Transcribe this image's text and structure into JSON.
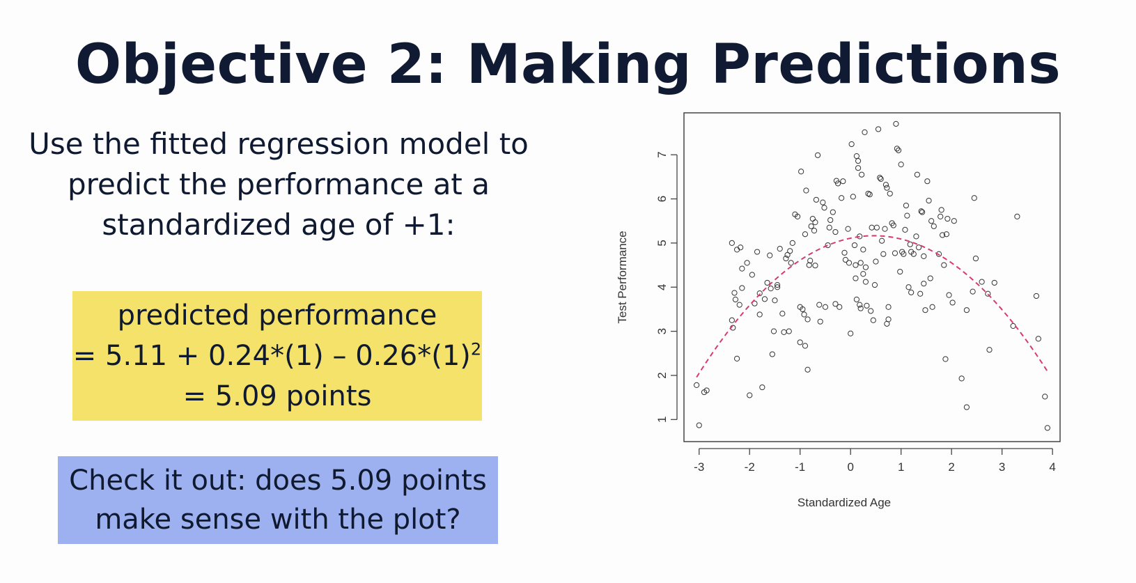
{
  "slide": {
    "title": "Objective 2: Making Predictions",
    "intro_lines": [
      "Use the fitted regression model to",
      "predict the performance at a",
      "standardized age of +1:"
    ],
    "formula": {
      "line1": "predicted performance",
      "line2_main": "= 5.11 + 0.24*(1) – 0.26*(1)",
      "line2_sup": "2",
      "line3": "= 5.09 points"
    },
    "check_lines": [
      "Check it out: does 5.09 points",
      "make sense with the plot?"
    ],
    "colors": {
      "formula_box": "#f5e26a",
      "check_box": "#9db0ef",
      "fit_line": "#d43c6e",
      "title_text": "#101b33"
    }
  },
  "chart_data": {
    "type": "scatter",
    "xlabel": "Standardized Age",
    "ylabel": "Test Performance",
    "xlim": [
      -3.3,
      4.15
    ],
    "ylim": [
      0.5,
      7.95
    ],
    "xticks": [
      -3,
      -2,
      -1,
      0,
      1,
      2,
      3,
      4
    ],
    "yticks": [
      1,
      2,
      3,
      4,
      5,
      6,
      7
    ],
    "grid": false,
    "fit": {
      "intercept": 5.11,
      "b1": 0.24,
      "b2": -0.26,
      "style": "dashed",
      "x_range": [
        -3.05,
        3.9
      ]
    },
    "points": [
      [
        -3.05,
        1.78
      ],
      [
        -3.0,
        0.87
      ],
      [
        -2.9,
        1.62
      ],
      [
        -2.85,
        1.66
      ],
      [
        -2.35,
        5.0
      ],
      [
        -2.25,
        4.85
      ],
      [
        -2.18,
        4.9
      ],
      [
        -2.15,
        4.42
      ],
      [
        -2.3,
        3.87
      ],
      [
        -2.28,
        3.72
      ],
      [
        -2.2,
        3.6
      ],
      [
        -2.15,
        3.98
      ],
      [
        -2.35,
        3.25
      ],
      [
        -2.33,
        3.08
      ],
      [
        -2.25,
        2.38
      ],
      [
        -2.05,
        4.55
      ],
      [
        -2.0,
        1.55
      ],
      [
        -1.95,
        4.28
      ],
      [
        -1.9,
        3.63
      ],
      [
        -1.85,
        4.8
      ],
      [
        -1.8,
        3.86
      ],
      [
        -1.8,
        3.38
      ],
      [
        -1.75,
        1.73
      ],
      [
        -1.7,
        3.73
      ],
      [
        -1.65,
        4.1
      ],
      [
        -1.6,
        4.72
      ],
      [
        -1.58,
        3.97
      ],
      [
        -1.55,
        2.48
      ],
      [
        -1.52,
        3.0
      ],
      [
        -1.5,
        3.7
      ],
      [
        -1.45,
        4.05
      ],
      [
        -1.45,
        4.0
      ],
      [
        -1.4,
        4.87
      ],
      [
        -1.35,
        3.4
      ],
      [
        -1.32,
        2.98
      ],
      [
        -1.28,
        4.65
      ],
      [
        -1.25,
        4.73
      ],
      [
        -1.22,
        3.0
      ],
      [
        -1.2,
        4.82
      ],
      [
        -1.18,
        4.55
      ],
      [
        -1.15,
        5.0
      ],
      [
        -1.1,
        5.65
      ],
      [
        -1.05,
        5.6
      ],
      [
        -1.0,
        3.55
      ],
      [
        -1.0,
        2.75
      ],
      [
        -0.98,
        6.62
      ],
      [
        -0.95,
        3.5
      ],
      [
        -0.92,
        3.38
      ],
      [
        -0.9,
        5.2
      ],
      [
        -0.9,
        2.67
      ],
      [
        -0.88,
        6.19
      ],
      [
        -0.85,
        3.27
      ],
      [
        -0.85,
        2.13
      ],
      [
        -0.82,
        4.5
      ],
      [
        -0.8,
        4.6
      ],
      [
        -0.78,
        5.38
      ],
      [
        -0.75,
        5.55
      ],
      [
        -0.72,
        5.28
      ],
      [
        -0.7,
        5.47
      ],
      [
        -0.7,
        4.49
      ],
      [
        -0.68,
        5.98
      ],
      [
        -0.65,
        6.99
      ],
      [
        -0.62,
        3.6
      ],
      [
        -0.6,
        3.22
      ],
      [
        -0.55,
        5.92
      ],
      [
        -0.52,
        5.8
      ],
      [
        -0.5,
        3.55
      ],
      [
        -0.45,
        4.95
      ],
      [
        -0.42,
        5.35
      ],
      [
        -0.4,
        5.52
      ],
      [
        -0.35,
        5.7
      ],
      [
        -0.3,
        5.25
      ],
      [
        -0.3,
        3.62
      ],
      [
        -0.28,
        6.41
      ],
      [
        -0.25,
        6.35
      ],
      [
        -0.22,
        3.55
      ],
      [
        -0.18,
        6.02
      ],
      [
        -0.15,
        6.4
      ],
      [
        -0.12,
        4.78
      ],
      [
        -0.1,
        4.62
      ],
      [
        -0.05,
        5.32
      ],
      [
        -0.03,
        4.55
      ],
      [
        0.0,
        2.95
      ],
      [
        0.02,
        7.24
      ],
      [
        0.05,
        6.05
      ],
      [
        0.08,
        4.95
      ],
      [
        0.1,
        4.5
      ],
      [
        0.1,
        4.2
      ],
      [
        0.12,
        6.97
      ],
      [
        0.12,
        3.72
      ],
      [
        0.15,
        6.86
      ],
      [
        0.15,
        6.7
      ],
      [
        0.18,
        5.15
      ],
      [
        0.18,
        3.6
      ],
      [
        0.2,
        4.55
      ],
      [
        0.2,
        3.52
      ],
      [
        0.22,
        6.55
      ],
      [
        0.25,
        4.3
      ],
      [
        0.25,
        4.85
      ],
      [
        0.28,
        7.51
      ],
      [
        0.3,
        4.45
      ],
      [
        0.3,
        4.12
      ],
      [
        0.32,
        3.58
      ],
      [
        0.35,
        6.12
      ],
      [
        0.38,
        6.1
      ],
      [
        0.4,
        3.46
      ],
      [
        0.42,
        5.35
      ],
      [
        0.45,
        3.25
      ],
      [
        0.48,
        4.05
      ],
      [
        0.5,
        4.58
      ],
      [
        0.52,
        5.35
      ],
      [
        0.55,
        7.58
      ],
      [
        0.58,
        6.48
      ],
      [
        0.6,
        6.45
      ],
      [
        0.62,
        5.05
      ],
      [
        0.65,
        4.75
      ],
      [
        0.68,
        5.32
      ],
      [
        0.7,
        6.32
      ],
      [
        0.72,
        6.25
      ],
      [
        0.72,
        3.17
      ],
      [
        0.75,
        3.55
      ],
      [
        0.75,
        3.27
      ],
      [
        0.78,
        6.12
      ],
      [
        0.82,
        5.45
      ],
      [
        0.85,
        5.4
      ],
      [
        0.88,
        4.77
      ],
      [
        0.9,
        7.7
      ],
      [
        0.92,
        7.14
      ],
      [
        0.95,
        7.1
      ],
      [
        0.98,
        4.35
      ],
      [
        1.0,
        6.78
      ],
      [
        1.02,
        4.8
      ],
      [
        1.05,
        4.75
      ],
      [
        1.08,
        5.3
      ],
      [
        1.1,
        5.85
      ],
      [
        1.12,
        5.62
      ],
      [
        1.15,
        4.0
      ],
      [
        1.18,
        4.97
      ],
      [
        1.2,
        4.8
      ],
      [
        1.2,
        3.88
      ],
      [
        1.25,
        4.75
      ],
      [
        1.3,
        5.15
      ],
      [
        1.32,
        6.55
      ],
      [
        1.35,
        4.9
      ],
      [
        1.38,
        3.85
      ],
      [
        1.4,
        5.72
      ],
      [
        1.42,
        5.7
      ],
      [
        1.45,
        4.7
      ],
      [
        1.45,
        4.08
      ],
      [
        1.48,
        3.48
      ],
      [
        1.52,
        6.4
      ],
      [
        1.55,
        5.96
      ],
      [
        1.58,
        4.2
      ],
      [
        1.6,
        5.5
      ],
      [
        1.62,
        3.55
      ],
      [
        1.65,
        5.38
      ],
      [
        1.75,
        4.75
      ],
      [
        1.78,
        5.6
      ],
      [
        1.8,
        5.75
      ],
      [
        1.82,
        5.18
      ],
      [
        1.85,
        4.5
      ],
      [
        1.9,
        5.2
      ],
      [
        1.92,
        5.55
      ],
      [
        1.88,
        2.37
      ],
      [
        1.95,
        3.82
      ],
      [
        2.02,
        3.65
      ],
      [
        2.05,
        5.5
      ],
      [
        2.2,
        1.93
      ],
      [
        2.3,
        1.28
      ],
      [
        2.3,
        3.48
      ],
      [
        2.42,
        3.9
      ],
      [
        2.45,
        6.02
      ],
      [
        2.48,
        4.65
      ],
      [
        2.6,
        4.12
      ],
      [
        2.72,
        3.85
      ],
      [
        2.75,
        2.58
      ],
      [
        2.85,
        4.1
      ],
      [
        3.22,
        3.12
      ],
      [
        3.3,
        5.6
      ],
      [
        3.68,
        3.8
      ],
      [
        3.72,
        2.83
      ],
      [
        3.85,
        1.52
      ],
      [
        3.9,
        0.81
      ]
    ]
  }
}
